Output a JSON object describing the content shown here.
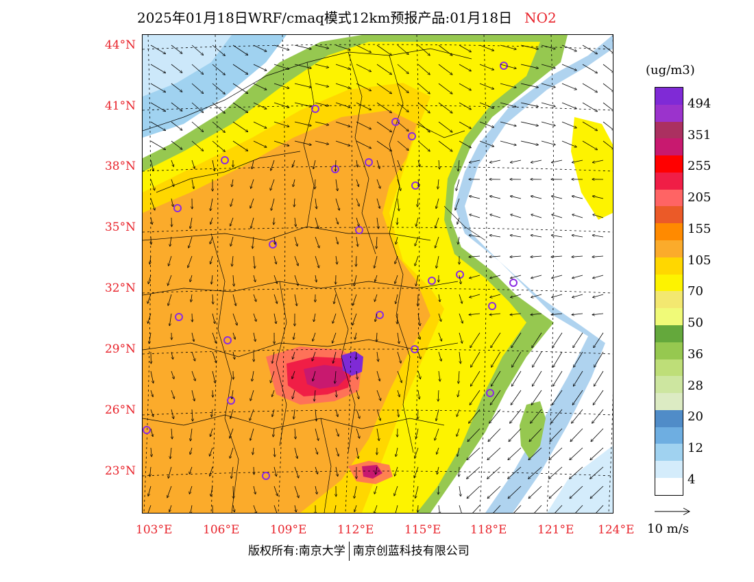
{
  "title": "2025年01月18日WRF/cmaq模式12km预报产品:01月18日",
  "pollutant": "NO2",
  "units": "(ug/m3)",
  "vector_label": "10 m/s",
  "copyright": {
    "a": "版权所有:南京大学",
    "b": "南京创蓝科技有限公司"
  },
  "lat_labels": [
    "44°N",
    "41°N",
    "38°N",
    "35°N",
    "32°N",
    "29°N",
    "26°N",
    "23°N"
  ],
  "lon_labels": [
    "103°E",
    "106°E",
    "109°E",
    "112°E",
    "115°E",
    "118°E",
    "121°E",
    "124°E"
  ],
  "colorbar": {
    "labels": [
      "494",
      "351",
      "255",
      "205",
      "155",
      "105",
      "70",
      "50",
      "36",
      "28",
      "20",
      "12",
      "4"
    ],
    "colors": [
      "#7f2ad6",
      "#9b33cc",
      "#ab3060",
      "#c8196f",
      "#ff0000",
      "#f01e46",
      "#ff6464",
      "#eb5a28",
      "#ff8a00",
      "#fbab2b",
      "#ffd700",
      "#fdf300",
      "#f3e870",
      "#f0fa78",
      "#64a83c",
      "#96c850",
      "#bede78",
      "#cde6a0",
      "#dcebc3",
      "#508cc8",
      "#6eaee1",
      "#a0d2f0",
      "#d4ecfb",
      "#ffffff"
    ]
  },
  "map": {
    "colors": {
      "background": "#ffffff",
      "ocean_light": "#d4ecfb",
      "ocean_mid": "#a0d2f0",
      "ocean_blue": "#6eaee1",
      "green": "#96c850",
      "dark_green": "#64a83c",
      "yellow": "#fdf300",
      "gold": "#ffd700",
      "orange": "#fbab2b",
      "hot": "#ff6464",
      "red": "#f01e46",
      "magenta": "#c8196f",
      "purple": "#7f2ad6"
    }
  }
}
